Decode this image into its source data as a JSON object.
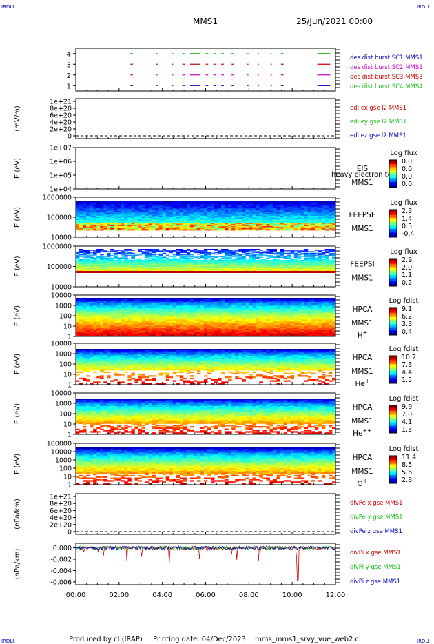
{
  "header": {
    "corner": "IRDLI",
    "mission": "MMS1",
    "date": "25/Jun/2021 00:00"
  },
  "footer": {
    "produced_by": "Produced by cl (IRAP)",
    "printing_date": "Printing date: 04/Dec/2023",
    "filename": "mms_mms1_srvy_vue_web2.cl"
  },
  "colors": {
    "red": "#d00000",
    "green": "#10c010",
    "blue": "#0000c0",
    "magenta": "#d000d0"
  },
  "chart_data": [
    {
      "type": "scatter",
      "ylim": [
        0.5,
        4.5
      ],
      "yticks": [
        "1",
        "2",
        "3",
        "4"
      ],
      "series": [
        {
          "name": "des dist burst SC1 MMS1",
          "color": "#0000c0"
        },
        {
          "name": "des dist burst SC2 MMS2",
          "color": "#d000d0"
        },
        {
          "name": "des dist burst SC3 MMS3",
          "color": "#d00000"
        },
        {
          "name": "des dist burst SC4 MMS4",
          "color": "#10c010"
        }
      ]
    },
    {
      "type": "line",
      "ylabel": "(mV/m)",
      "yticks": [
        "1e+21",
        "8e+20",
        "6e+20",
        "4e+20",
        "2e+20",
        "0"
      ],
      "series": [
        {
          "name": "edi ex gse l2 MMS1",
          "color": "#d00000"
        },
        {
          "name": "edi ey gse l2 MMS1",
          "color": "#10c010"
        },
        {
          "name": "edi ez gse l2 MMS1",
          "color": "#0000c0"
        }
      ]
    },
    {
      "type": "heatmap",
      "ylabel": "E (eV)",
      "yticks": [
        "1e+07",
        "1e+06",
        "1e+05",
        "1e+04"
      ],
      "instrument": [
        "EIS",
        "MMS1"
      ],
      "overlay_text": "heavy electron to",
      "colorbar": {
        "title": "Log flux",
        "ticks": [
          "0.0",
          "0.0",
          "0.0",
          "0.0"
        ]
      }
    },
    {
      "type": "heatmap",
      "ylabel": "E (eV)",
      "yticks": [
        "1000000",
        "100000",
        "10000"
      ],
      "instrument": [
        "FEEPSE",
        "MMS1"
      ],
      "colorbar": {
        "title": "Log flux",
        "ticks": [
          "2.3",
          "1.4",
          "0.5",
          "-0.4"
        ]
      }
    },
    {
      "type": "heatmap",
      "ylabel": "E (eV)",
      "yticks": [
        "1000000",
        "100000",
        "10000"
      ],
      "instrument": [
        "FEEPSI",
        "MMS1"
      ],
      "colorbar": {
        "title": "Log flux",
        "ticks": [
          "2.9",
          "2.0",
          "1.1",
          "0.2"
        ]
      }
    },
    {
      "type": "heatmap",
      "ylabel": "E (eV)",
      "yticks": [
        "10000",
        "1000",
        "100",
        "10",
        "1"
      ],
      "instrument": [
        "HPCA",
        "MMS1"
      ],
      "species": "H",
      "species_sup": "+",
      "colorbar": {
        "title": "Log fdist",
        "ticks": [
          "9.1",
          "6.2",
          "3.3",
          "0.4"
        ]
      }
    },
    {
      "type": "heatmap",
      "ylabel": "E (eV)",
      "yticks": [
        "10000",
        "1000",
        "100",
        "10",
        "1"
      ],
      "instrument": [
        "HPCA",
        "MMS1"
      ],
      "species": "He",
      "species_sup": "+",
      "colorbar": {
        "title": "Log fdist",
        "ticks": [
          "10.2",
          "7.3",
          "4.4",
          "1.5"
        ]
      }
    },
    {
      "type": "heatmap",
      "ylabel": "E (eV)",
      "yticks": [
        "10000",
        "1000",
        "100",
        "10",
        "1"
      ],
      "instrument": [
        "HPCA",
        "MMS1"
      ],
      "species": "He",
      "species_sup": "++",
      "colorbar": {
        "title": "Log fdist",
        "ticks": [
          "9.9",
          "7.0",
          "4.1",
          "1.3"
        ]
      }
    },
    {
      "type": "heatmap",
      "ylabel": "E (eV)",
      "yticks": [
        "100000",
        "10000",
        "1000",
        "100",
        "10",
        "1"
      ],
      "instrument": [
        "HPCA",
        "MMS1"
      ],
      "species": "O",
      "species_sup": "+",
      "colorbar": {
        "title": "Log fdist",
        "ticks": [
          "11.4",
          "8.5",
          "5.6",
          "2.8"
        ]
      }
    },
    {
      "type": "line",
      "ylabel": "(nPa/km)",
      "yticks": [
        "1e+21",
        "8e+20",
        "6e+20",
        "4e+20",
        "2e+20",
        "0"
      ],
      "series": [
        {
          "name": "divPe x gse MMS1",
          "color": "#d00000"
        },
        {
          "name": "divPe y gse MMS1",
          "color": "#10c010"
        },
        {
          "name": "divPe z gse MMS1",
          "color": "#0000c0"
        }
      ]
    },
    {
      "type": "line",
      "ylabel": "(nPa/km)",
      "yticks": [
        "0.000",
        "-0.002",
        "-0.004",
        "-0.006"
      ],
      "ylim": [
        -0.0065,
        0.0008
      ],
      "series": [
        {
          "name": "divPi x gse MMS1",
          "color": "#d00000"
        },
        {
          "name": "divPi y gse MMS1",
          "color": "#10c010"
        },
        {
          "name": "divPi z gse MMS1",
          "color": "#0000c0"
        }
      ]
    }
  ],
  "xaxis": {
    "ticks": [
      "00:00",
      "02:00",
      "04:00",
      "06:00",
      "08:00",
      "10:00",
      "12:00"
    ]
  }
}
